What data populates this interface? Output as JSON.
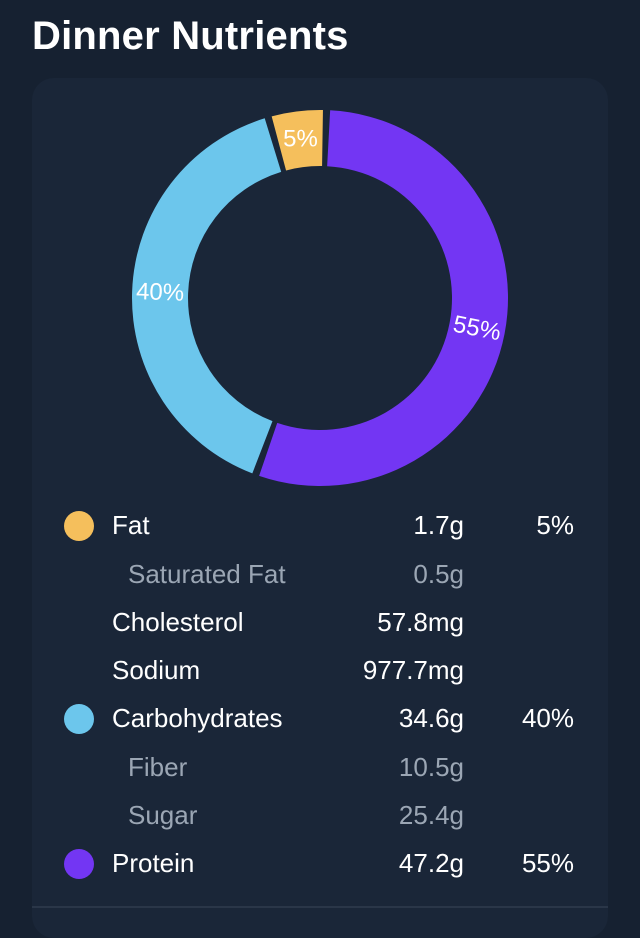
{
  "page": {
    "title": "Dinner Nutrients"
  },
  "chart_data": {
    "type": "pie",
    "title": "",
    "categories": [
      "Fat",
      "Carbohydrates",
      "Protein"
    ],
    "values": [
      5,
      40,
      55
    ],
    "labels": [
      "5%",
      "40%",
      "55%"
    ],
    "colors": [
      "#f5bf5c",
      "#6cc6ec",
      "#7336f3"
    ]
  },
  "nutrients": [
    {
      "name": "Fat",
      "amount": "1.7g",
      "percent": "5%",
      "color": "#f5bf5c",
      "sub": false
    },
    {
      "name": "Saturated Fat",
      "amount": "0.5g",
      "percent": "",
      "sub": true
    },
    {
      "name": "Cholesterol",
      "amount": "57.8mg",
      "percent": "",
      "sub": false
    },
    {
      "name": "Sodium",
      "amount": "977.7mg",
      "percent": "",
      "sub": false
    },
    {
      "name": "Carbohydrates",
      "amount": "34.6g",
      "percent": "40%",
      "color": "#6cc6ec",
      "sub": false
    },
    {
      "name": "Fiber",
      "amount": "10.5g",
      "percent": "",
      "sub": true
    },
    {
      "name": "Sugar",
      "amount": "25.4g",
      "percent": "",
      "sub": true
    },
    {
      "name": "Protein",
      "amount": "47.2g",
      "percent": "55%",
      "color": "#7336f3",
      "sub": false
    }
  ]
}
